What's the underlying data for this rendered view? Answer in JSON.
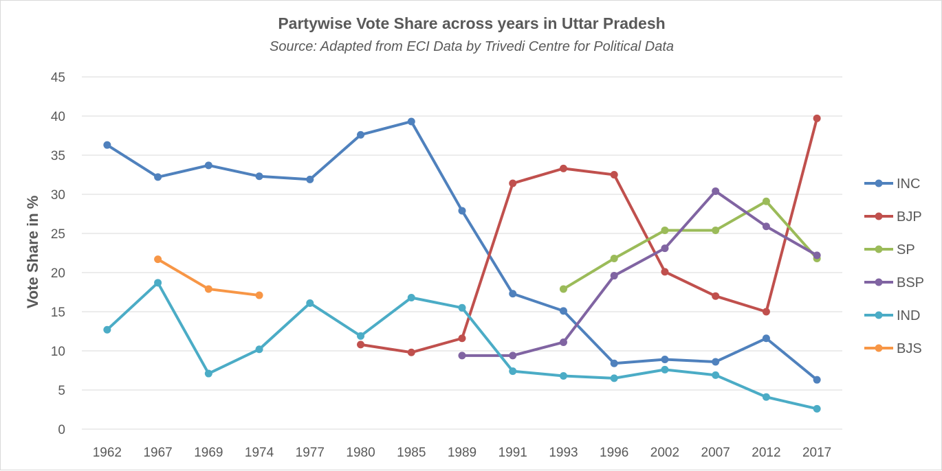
{
  "chart_data": {
    "type": "line",
    "title": "Partywise Vote Share across years in Uttar Pradesh",
    "subtitle": "Source: Adapted from ECI Data by Trivedi Centre for Political Data",
    "xlabel": "",
    "ylabel": "Vote Share in %",
    "ylim": [
      0,
      45
    ],
    "yticks": [
      "0",
      "5",
      "10",
      "15",
      "20",
      "25",
      "30",
      "35",
      "40",
      "45"
    ],
    "categories": [
      "1962",
      "1967",
      "1969",
      "1974",
      "1977",
      "1980",
      "1985",
      "1989",
      "1991",
      "1993",
      "1996",
      "2002",
      "2007",
      "2012",
      "2017"
    ],
    "grid": true,
    "legend_position": "right",
    "series": [
      {
        "name": "INC",
        "color": "#4f81bd",
        "values": [
          36.3,
          32.2,
          33.7,
          32.3,
          31.9,
          37.6,
          39.3,
          27.9,
          17.3,
          15.1,
          8.4,
          8.9,
          8.6,
          11.6,
          6.3
        ]
      },
      {
        "name": "BJP",
        "color": "#c0504d",
        "values": [
          null,
          null,
          null,
          null,
          null,
          10.8,
          9.8,
          11.6,
          31.4,
          33.3,
          32.5,
          20.1,
          17.0,
          15.0,
          39.7
        ]
      },
      {
        "name": "SP",
        "color": "#9bbb59",
        "values": [
          null,
          null,
          null,
          null,
          null,
          null,
          null,
          null,
          null,
          17.9,
          21.8,
          25.4,
          25.4,
          29.1,
          21.8
        ]
      },
      {
        "name": "BSP",
        "color": "#8064a2",
        "values": [
          null,
          null,
          null,
          null,
          null,
          null,
          null,
          9.4,
          9.4,
          11.1,
          19.6,
          23.1,
          30.4,
          25.9,
          22.2
        ]
      },
      {
        "name": "IND",
        "color": "#4bacc6",
        "values": [
          12.7,
          18.7,
          7.1,
          10.2,
          16.1,
          11.9,
          16.8,
          15.5,
          7.4,
          6.8,
          6.5,
          7.6,
          6.9,
          4.1,
          2.6
        ]
      },
      {
        "name": "BJS",
        "color": "#f79646",
        "values": [
          null,
          21.7,
          17.9,
          17.1,
          null,
          null,
          null,
          null,
          null,
          null,
          null,
          null,
          null,
          null,
          null
        ]
      }
    ]
  }
}
